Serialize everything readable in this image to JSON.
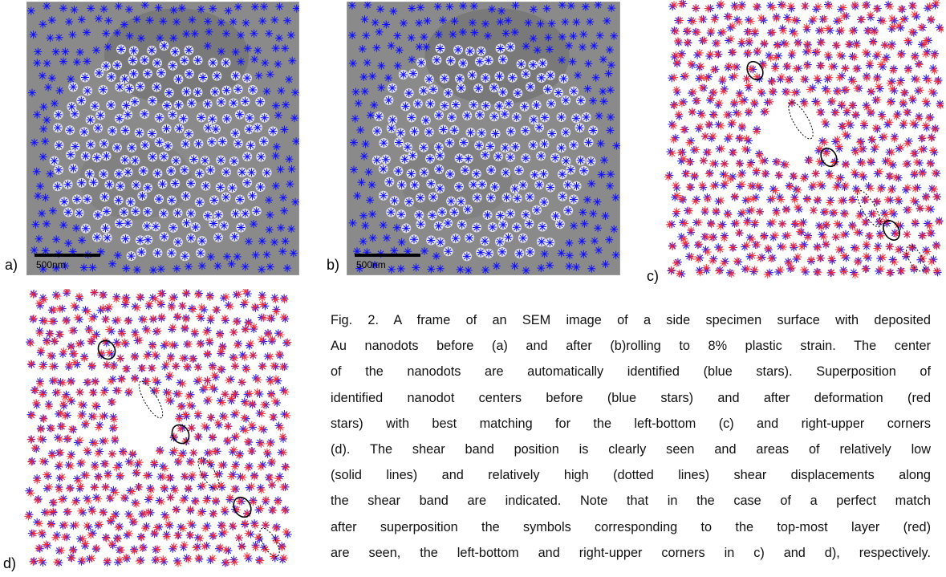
{
  "panels": [
    {
      "label": "a)",
      "scale_bar": "500nm"
    },
    {
      "label": "b)",
      "scale_bar": "500nm"
    },
    {
      "label": "c)"
    },
    {
      "label": "d)"
    }
  ],
  "caption": {
    "lines": [
      "Fig. 2. A frame of an SEM image of a side specimen surface with deposited",
      "Au nanodots before (a) and after (b)rolling to 8% plastic strain. The center",
      "of the nanodots are automatically identified (blue stars). Superposition of",
      "identified nanodot centers before (blue stars) and after deformation (red",
      "stars) with best matching for the left-bottom (c) and right-upper corners",
      "(d). The shear band position is clearly seen and areas of relatively low",
      "(solid lines) and relatively high (dotted lines) shear displacements along",
      "the shear band are indicated. Note that in the case of a perfect match",
      "after superposition the symbols corresponding to the top-most layer (red)",
      "are seen, the left-bottom and right-upper corners in c) and d), respectively."
    ]
  }
}
